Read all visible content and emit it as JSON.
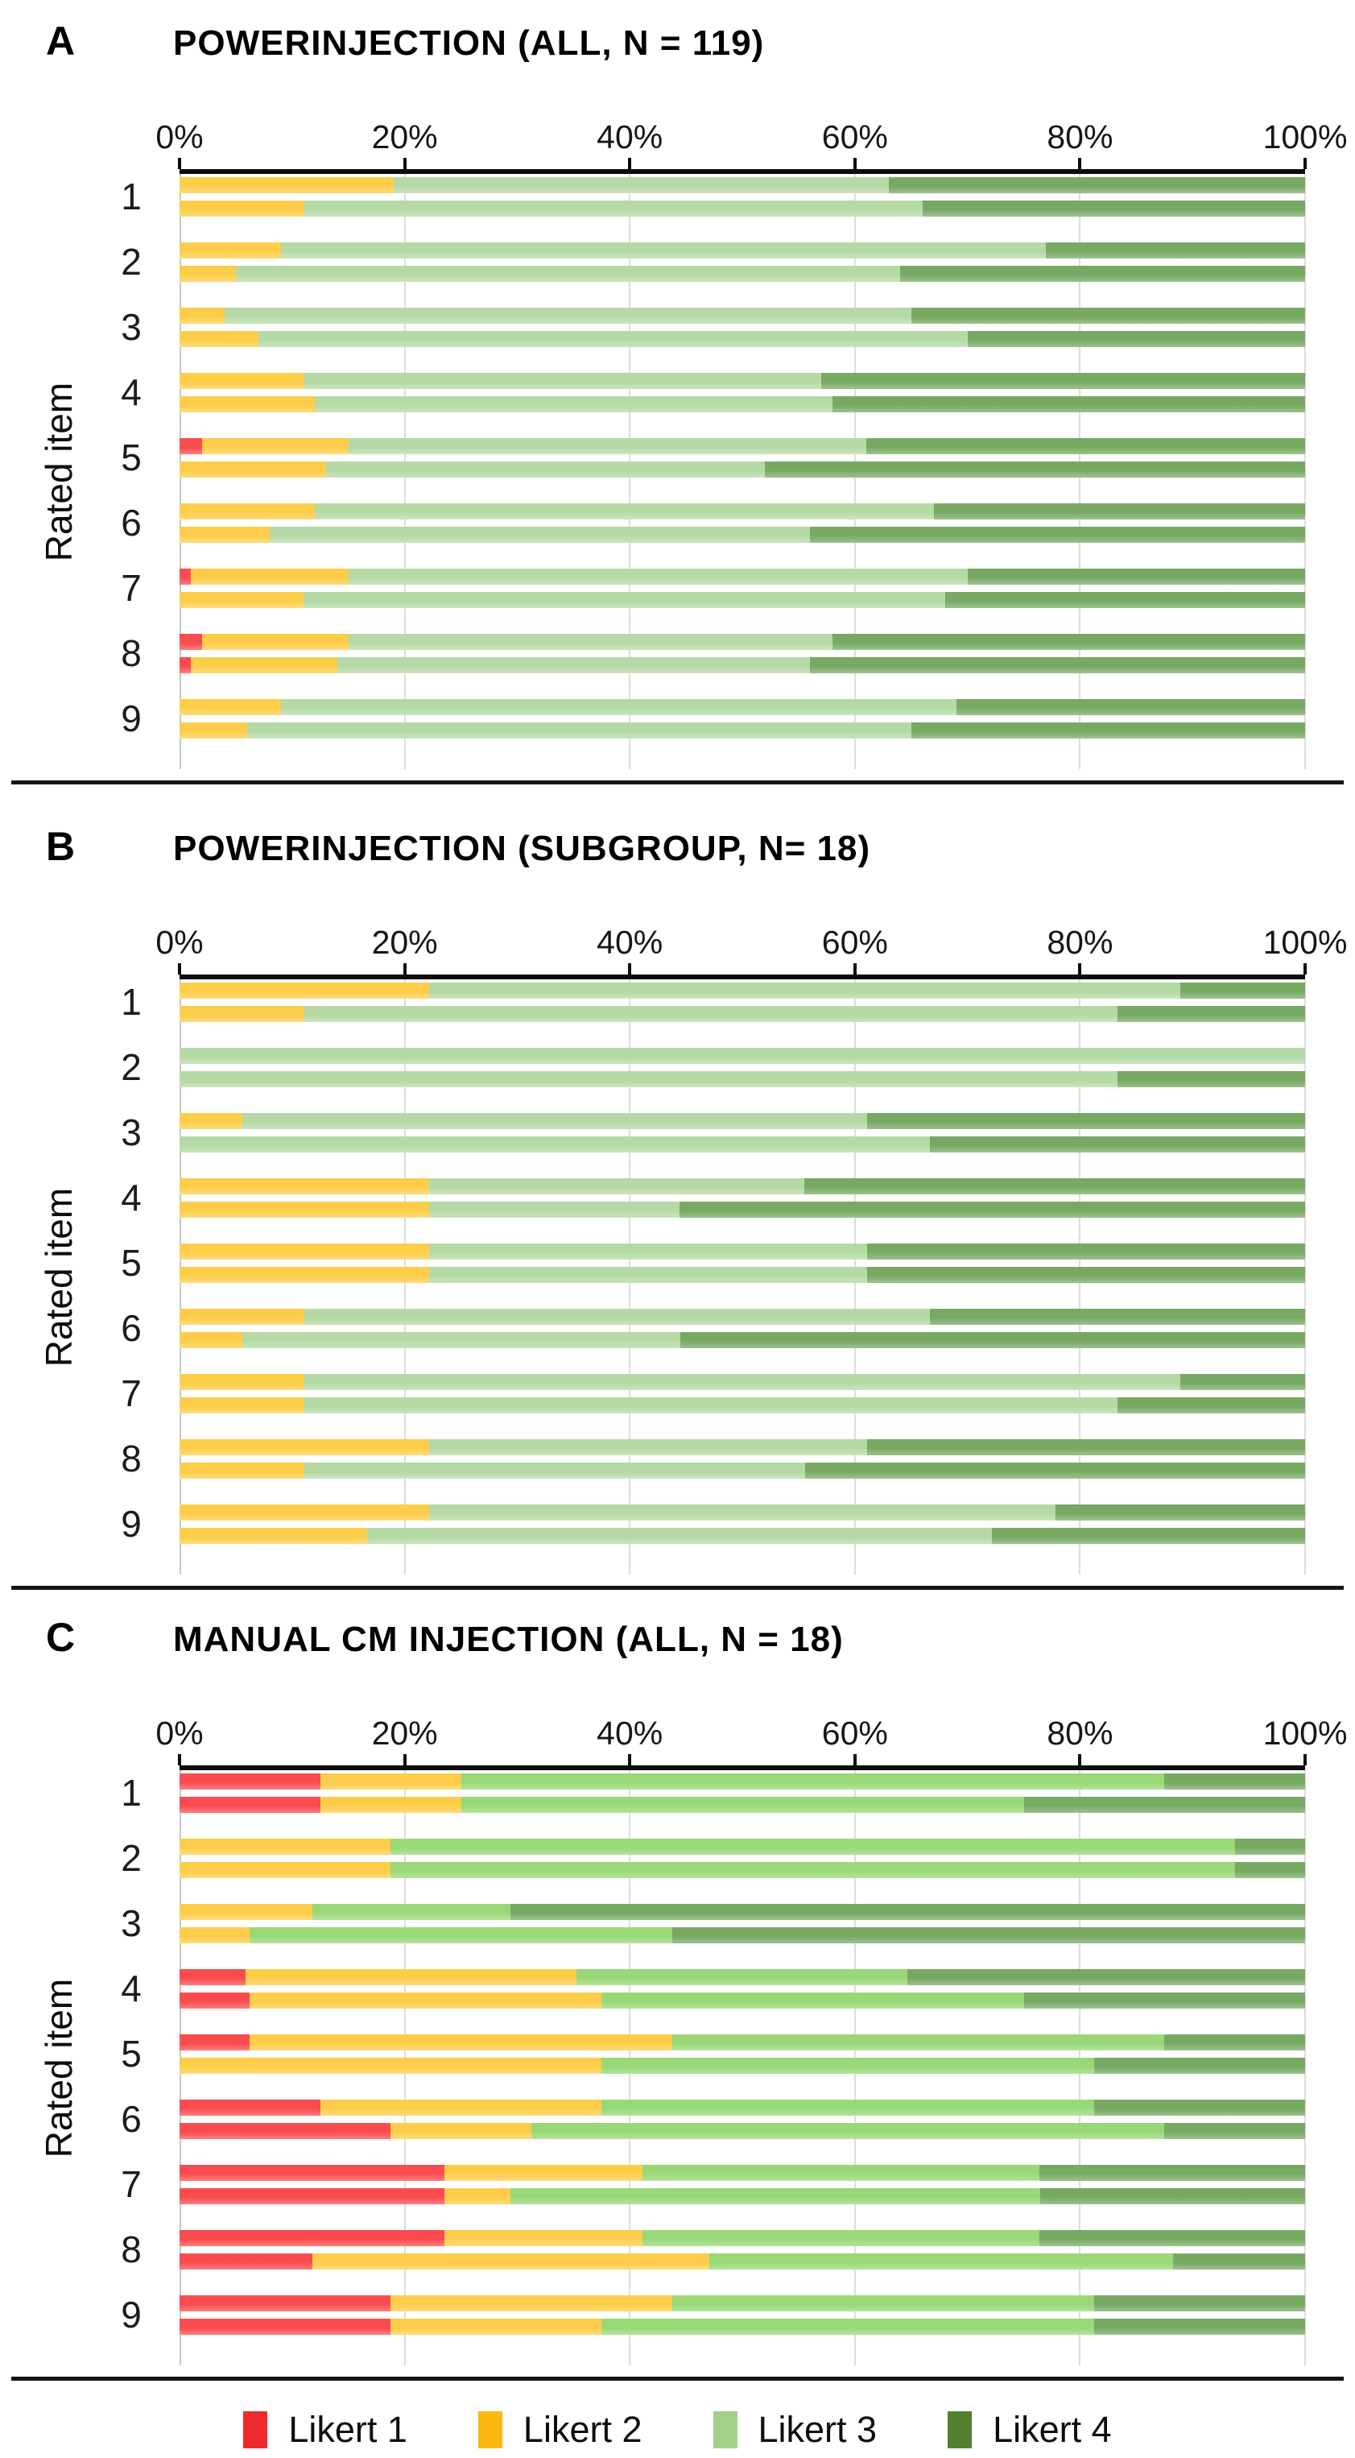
{
  "figure": {
    "ylabel": "Rated item",
    "x_ticks": [
      "0%",
      "20%",
      "40%",
      "60%",
      "80%",
      "100%"
    ]
  },
  "legend": {
    "items": [
      {
        "label": "Likert 1",
        "color": "#EE2A2E"
      },
      {
        "label": "Likert 2",
        "color": "#FBB810"
      },
      {
        "label": "Likert 3",
        "color": "#A3D088"
      },
      {
        "label": "Likert 4",
        "color": "#53802E"
      }
    ]
  },
  "chart_data": [
    {
      "type": "bar",
      "orientation": "horizontal",
      "stacked": true,
      "unit": "percent",
      "panel": "A",
      "title": "POWERINJECTION (ALL, N = 119)",
      "ylabel": "Rated item",
      "xlim": [
        0,
        100
      ],
      "x_ticks": [
        "0%",
        "20%",
        "40%",
        "60%",
        "80%",
        "100%"
      ],
      "grid": true,
      "categories": [
        "1",
        "2",
        "3",
        "4",
        "5",
        "6",
        "7",
        "8",
        "9"
      ],
      "bars_per_category": 2,
      "series_labels": [
        "Likert 1",
        "Likert 2",
        "Likert 3",
        "Likert 4"
      ],
      "colors": [
        "#FA4B4E",
        "#FDCD49",
        "#B5D9A5",
        "#77A963"
      ],
      "values": [
        [
          [
            0,
            19,
            44,
            37
          ],
          [
            0,
            11,
            55,
            34
          ]
        ],
        [
          [
            0,
            9,
            68,
            23
          ],
          [
            0,
            5,
            59,
            36
          ]
        ],
        [
          [
            0,
            4,
            61,
            35
          ],
          [
            0,
            7,
            63,
            30
          ]
        ],
        [
          [
            0,
            11,
            46,
            43
          ],
          [
            0,
            12,
            46,
            42
          ]
        ],
        [
          [
            2,
            13,
            46,
            39
          ],
          [
            0,
            13,
            39,
            48
          ]
        ],
        [
          [
            0,
            12,
            55,
            33
          ],
          [
            0,
            8,
            48,
            44
          ]
        ],
        [
          [
            1,
            14,
            55,
            30
          ],
          [
            0,
            11,
            57,
            32
          ]
        ],
        [
          [
            2,
            13,
            43,
            42
          ],
          [
            1,
            13,
            42,
            44
          ]
        ],
        [
          [
            0,
            9,
            60,
            31
          ],
          [
            0,
            6,
            59,
            35
          ]
        ]
      ]
    },
    {
      "type": "bar",
      "orientation": "horizontal",
      "stacked": true,
      "unit": "percent",
      "panel": "B",
      "title": "POWERINJECTION (SUBGROUP, N= 18)",
      "ylabel": "Rated item",
      "xlim": [
        0,
        100
      ],
      "x_ticks": [
        "0%",
        "20%",
        "40%",
        "60%",
        "80%",
        "100%"
      ],
      "grid": true,
      "categories": [
        "1",
        "2",
        "3",
        "4",
        "5",
        "6",
        "7",
        "8",
        "9"
      ],
      "bars_per_category": 2,
      "series_labels": [
        "Likert 1",
        "Likert 2",
        "Likert 3",
        "Likert 4"
      ],
      "colors": [
        "#FA4B4E",
        "#FDCD49",
        "#B5D9A5",
        "#77A963"
      ],
      "values": [
        [
          [
            0,
            22.2,
            66.7,
            11.1
          ],
          [
            0,
            11.1,
            72.2,
            16.7
          ]
        ],
        [
          [
            0,
            0,
            100,
            0
          ],
          [
            0,
            0,
            83.3,
            16.7
          ]
        ],
        [
          [
            0,
            5.6,
            55.5,
            38.9
          ],
          [
            0,
            0,
            66.7,
            33.3
          ]
        ],
        [
          [
            0,
            22.2,
            33.3,
            44.5
          ],
          [
            0,
            22.2,
            22.2,
            55.6
          ]
        ],
        [
          [
            0,
            22.2,
            38.9,
            38.9
          ],
          [
            0,
            22.2,
            38.9,
            38.9
          ]
        ],
        [
          [
            0,
            11.1,
            55.6,
            33.3
          ],
          [
            0,
            5.6,
            38.9,
            55.5
          ]
        ],
        [
          [
            0,
            11.1,
            77.8,
            11.1
          ],
          [
            0,
            11.1,
            72.2,
            16.7
          ]
        ],
        [
          [
            0,
            22.2,
            38.9,
            38.9
          ],
          [
            0,
            11.1,
            44.5,
            44.4
          ]
        ],
        [
          [
            0,
            22.2,
            55.6,
            22.2
          ],
          [
            0,
            16.7,
            55.5,
            27.8
          ]
        ]
      ]
    },
    {
      "type": "bar",
      "orientation": "horizontal",
      "stacked": true,
      "unit": "percent",
      "panel": "C",
      "title": "MANUAL CM INJECTION (ALL, N = 18)",
      "ylabel": "Rated item",
      "xlim": [
        0,
        100
      ],
      "x_ticks": [
        "0%",
        "20%",
        "40%",
        "60%",
        "80%",
        "100%"
      ],
      "grid": true,
      "categories": [
        "1",
        "2",
        "3",
        "4",
        "5",
        "6",
        "7",
        "8",
        "9"
      ],
      "bars_per_category": 2,
      "series_labels": [
        "Likert 1",
        "Likert 2",
        "Likert 3",
        "Likert 4"
      ],
      "colors": [
        "#FA4B4E",
        "#FDCD49",
        "#98D876",
        "#77A963"
      ],
      "values": [
        [
          [
            12.5,
            12.5,
            62.5,
            12.5
          ],
          [
            12.5,
            12.5,
            50,
            25
          ]
        ],
        [
          [
            0,
            18.75,
            75,
            6.25
          ],
          [
            0,
            18.75,
            75,
            6.25
          ]
        ],
        [
          [
            0,
            11.8,
            17.6,
            70.6
          ],
          [
            0,
            6.25,
            37.5,
            56.25
          ]
        ],
        [
          [
            5.9,
            29.4,
            29.4,
            35.3
          ],
          [
            6.25,
            31.25,
            37.5,
            25
          ]
        ],
        [
          [
            6.25,
            37.5,
            43.75,
            12.5
          ],
          [
            0,
            37.5,
            43.75,
            18.75
          ]
        ],
        [
          [
            12.5,
            25,
            43.75,
            18.75
          ],
          [
            18.75,
            12.5,
            56.25,
            12.5
          ]
        ],
        [
          [
            23.5,
            17.6,
            35.3,
            23.6
          ],
          [
            23.5,
            5.9,
            47.1,
            23.5
          ]
        ],
        [
          [
            23.5,
            17.6,
            35.3,
            23.6
          ],
          [
            11.8,
            35.3,
            41.2,
            11.7
          ]
        ],
        [
          [
            18.75,
            25,
            37.5,
            18.75
          ],
          [
            18.75,
            18.75,
            43.75,
            18.75
          ]
        ]
      ]
    }
  ]
}
